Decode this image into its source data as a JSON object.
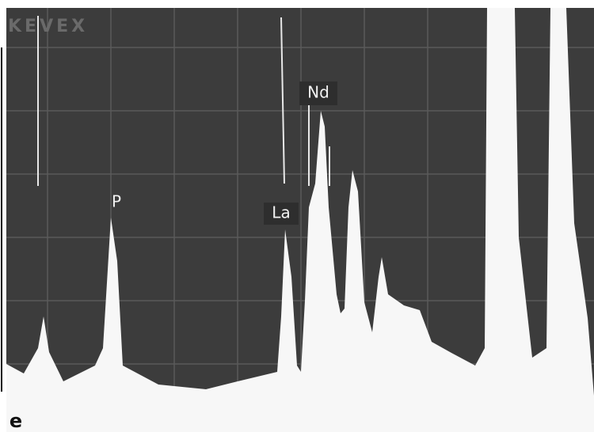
{
  "screen_label": "KEVEX",
  "peak_labels": [
    "P",
    "La",
    "Nd"
  ],
  "panel_label": "e"
}
